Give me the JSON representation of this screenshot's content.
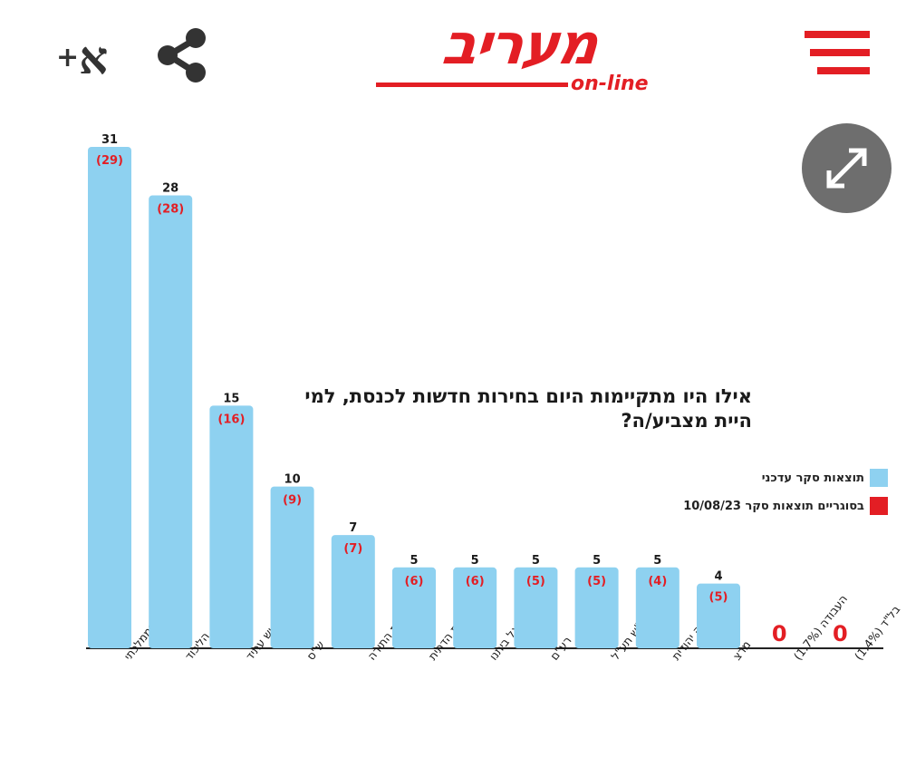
{
  "header": {
    "font_size_label": "א",
    "font_size_plus": "+",
    "logo_text": "מעריב",
    "logo_subtext": "on-line"
  },
  "colors": {
    "brand": "#e31e24",
    "bar": "#8ed1f0",
    "previous_label": "#e31e24",
    "current_label": "#1a1a1a",
    "expand_button": "#6e6e6e"
  },
  "icons": {
    "share": "share-icon",
    "menu": "hamburger-menu-icon",
    "expand": "expand-arrows-icon"
  },
  "chart_data": {
    "type": "bar",
    "title": "אילו היו מתקיימות היום בחירות חדשות לכנסת, למי היית מצביע/ה?",
    "categories": [
      "המחנה הממלכתי",
      "הליכוד",
      "יש עתיד",
      "ש\"ס",
      "יהדות התורה",
      "הציונות הדתית",
      "ישראל ביתנו",
      "רע\"ם",
      "חד\"ש תע\"ל",
      "עוצמה יהודית",
      "מרצ",
      "העבודה (1.7%)",
      "בל\"ד (1.4%)"
    ],
    "series": [
      {
        "name": "תוצאות סקר עדכני",
        "values": [
          31,
          28,
          15,
          10,
          7,
          5,
          5,
          5,
          5,
          5,
          4,
          0,
          0
        ]
      },
      {
        "name": "בסוגריים תוצאות סקר 10/08/23",
        "values": [
          29,
          28,
          16,
          9,
          7,
          6,
          6,
          5,
          5,
          4,
          5,
          null,
          null
        ]
      }
    ],
    "current_labels": [
      "31",
      "28",
      "15",
      "10",
      "7",
      "5",
      "5",
      "5",
      "5",
      "5",
      "4",
      "0",
      "0"
    ],
    "previous_labels": [
      "(29)",
      "(28)",
      "(16)",
      "(9)",
      "(7)",
      "(6)",
      "(6)",
      "(5)",
      "(5)",
      "(4)",
      "(5)",
      "",
      ""
    ],
    "legend": [
      {
        "label": "תוצאות סקר עדכני",
        "color": "#8ed1f0"
      },
      {
        "label": "בסוגריים תוצאות סקר 10/08/23",
        "color": "#e31e24"
      }
    ],
    "ylim": [
      0,
      31
    ],
    "grid": false,
    "legend_position": "right"
  }
}
